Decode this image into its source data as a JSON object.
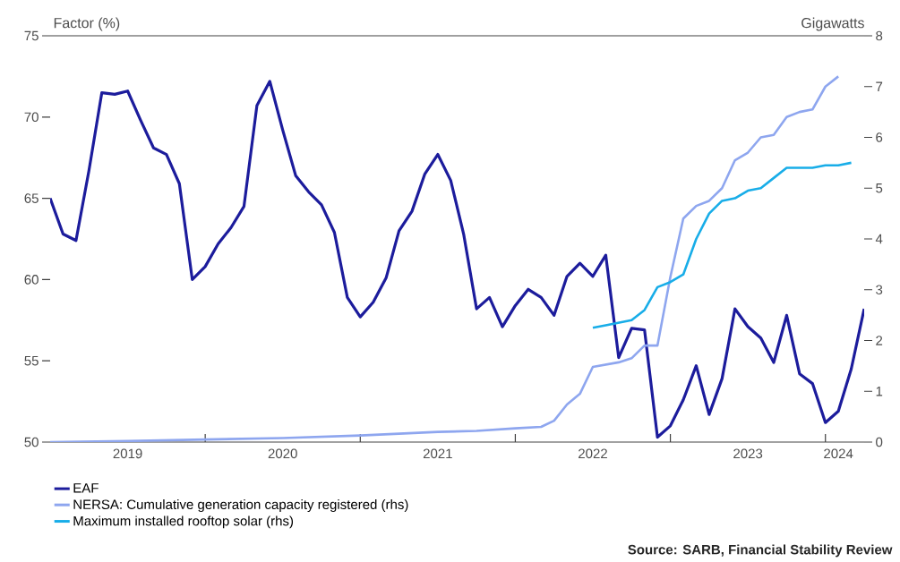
{
  "chart_data": {
    "type": "line",
    "ylabel": "Factor (%)",
    "y2label": "Gigawatts",
    "x": [
      "2019-01",
      "2019-02",
      "2019-03",
      "2019-04",
      "2019-05",
      "2019-06",
      "2019-07",
      "2019-08",
      "2019-09",
      "2019-10",
      "2019-11",
      "2019-12",
      "2020-01",
      "2020-02",
      "2020-03",
      "2020-04",
      "2020-05",
      "2020-06",
      "2020-07",
      "2020-08",
      "2020-09",
      "2020-10",
      "2020-11",
      "2020-12",
      "2021-01",
      "2021-02",
      "2021-03",
      "2021-04",
      "2021-05",
      "2021-06",
      "2021-07",
      "2021-08",
      "2021-09",
      "2021-10",
      "2021-11",
      "2021-12",
      "2022-01",
      "2022-02",
      "2022-03",
      "2022-04",
      "2022-05",
      "2022-06",
      "2022-07",
      "2022-08",
      "2022-09",
      "2022-10",
      "2022-11",
      "2022-12",
      "2023-01",
      "2023-02",
      "2023-03",
      "2023-04",
      "2023-05",
      "2023-06",
      "2023-07",
      "2023-08",
      "2023-09",
      "2023-10",
      "2023-11",
      "2023-12",
      "2024-01",
      "2024-02",
      "2024-03",
      "2024-04"
    ],
    "series": [
      {
        "name": "EAF",
        "color": "#1c1c9c",
        "values": [
          65.0,
          62.8,
          62.4,
          66.7,
          71.5,
          71.4,
          71.6,
          69.8,
          68.1,
          67.7,
          65.9,
          60.0,
          60.8,
          62.2,
          63.2,
          64.5,
          70.7,
          72.2,
          69.2,
          66.4,
          65.4,
          64.6,
          62.9,
          58.9,
          57.7,
          58.6,
          60.1,
          63.0,
          64.2,
          66.5,
          67.7,
          66.1,
          62.8,
          58.2,
          58.9,
          57.1,
          58.4,
          59.4,
          58.9,
          57.8,
          60.2,
          61.0,
          60.2,
          61.5,
          55.2,
          57.0,
          56.9,
          50.3,
          51.0,
          52.6,
          54.7,
          51.7,
          53.9,
          58.2,
          57.1,
          56.4,
          54.9,
          57.8,
          54.2,
          53.6,
          51.2,
          51.9,
          54.5,
          58.2
        ]
      },
      {
        "name": "NERSA: Cumulative generation capacity registered (rhs)",
        "color": "#8ea6ef",
        "axis": "y2",
        "x": [
          "2019-01",
          "2019-07",
          "2020-01",
          "2020-07",
          "2021-01",
          "2021-07",
          "2021-10",
          "2022-01",
          "2022-03",
          "2022-04",
          "2022-05",
          "2022-06",
          "2022-07",
          "2022-09",
          "2022-10",
          "2022-11",
          "2022-12",
          "2023-01",
          "2023-02",
          "2023-03",
          "2023-04",
          "2023-05",
          "2023-06",
          "2023-07",
          "2023-08",
          "2023-09",
          "2023-10",
          "2023-11",
          "2023-12",
          "2024-01",
          "2024-02"
        ],
        "values": [
          0.0,
          0.02,
          0.05,
          0.08,
          0.13,
          0.2,
          0.22,
          0.27,
          0.3,
          0.42,
          0.74,
          0.95,
          1.48,
          1.57,
          1.65,
          1.9,
          1.9,
          3.25,
          4.4,
          4.65,
          4.75,
          5.0,
          5.55,
          5.7,
          6.0,
          6.05,
          6.4,
          6.5,
          6.55,
          7.0,
          7.2
        ]
      },
      {
        "name": "Maximum installed rooftop solar (rhs)",
        "color": "#18ade8",
        "axis": "y2",
        "x": [
          "2022-07",
          "2022-08",
          "2022-09",
          "2022-10",
          "2022-11",
          "2022-12",
          "2023-01",
          "2023-02",
          "2023-03",
          "2023-04",
          "2023-05",
          "2023-06",
          "2023-07",
          "2023-08",
          "2023-09",
          "2023-10",
          "2023-11",
          "2023-12",
          "2024-01",
          "2024-02",
          "2024-03"
        ],
        "values": [
          2.25,
          2.3,
          2.35,
          2.4,
          2.6,
          3.05,
          3.15,
          3.3,
          4.0,
          4.5,
          4.75,
          4.8,
          4.95,
          5.0,
          5.2,
          5.4,
          5.4,
          5.4,
          5.45,
          5.45,
          5.5
        ]
      }
    ],
    "xlim": [
      "2019-01",
      "2024-04"
    ],
    "xticks": [
      {
        "value": "2019-07",
        "label": "2019"
      },
      {
        "value": "2020-01",
        "label": null
      },
      {
        "value": "2020-07",
        "label": "2020"
      },
      {
        "value": "2021-01",
        "label": null
      },
      {
        "value": "2021-07",
        "label": "2021"
      },
      {
        "value": "2022-01",
        "label": null
      },
      {
        "value": "2022-07",
        "label": "2022"
      },
      {
        "value": "2023-01",
        "label": null
      },
      {
        "value": "2023-07",
        "label": "2023"
      },
      {
        "value": "2024-01",
        "label": null
      },
      {
        "value": "2024-02",
        "label": "2024"
      }
    ],
    "ylim": [
      50,
      75
    ],
    "yticks": [
      50,
      55,
      60,
      65,
      70,
      75
    ],
    "y2lim": [
      0,
      8
    ],
    "y2ticks": [
      0,
      1,
      2,
      3,
      4,
      5,
      6,
      7,
      8
    ],
    "grid": false,
    "legend": "bottom",
    "annotations": [
      "Source: SARB, Financial Stability Review"
    ]
  }
}
